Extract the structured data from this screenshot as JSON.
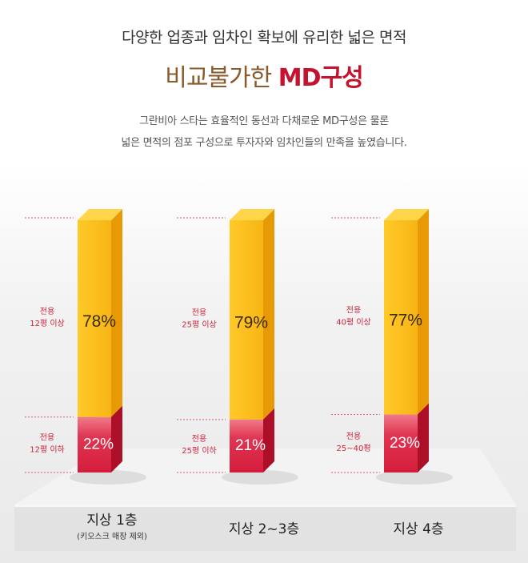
{
  "header": {
    "subtitle": "다양한 업종과 임차인 확보에 유리한 넓은 면적",
    "title_plain": "비교불가한 ",
    "title_highlight": "MD구성",
    "description_line1": "그란비아 스타는 효율적인 동선과 다채로운 MD구성은 물론",
    "description_line2": "넓은 면적의 점포 구성으로 투자자와 임차인들의 만족을 높였습니다."
  },
  "chart_data": {
    "type": "bar",
    "stacked": true,
    "categories": [
      "지상 1층",
      "지상 2~3층",
      "지상 4층"
    ],
    "category_notes": [
      "(키오스크 매장 제외)",
      "",
      ""
    ],
    "series": [
      {
        "values": [
          22,
          21,
          23
        ],
        "labels": [
          "22%",
          "21%",
          "23%"
        ],
        "side_labels": [
          [
            "전용",
            "12평 이하"
          ],
          [
            "전용",
            "25평 이하"
          ],
          [
            "전용",
            "25~40평"
          ]
        ],
        "color": "#d41d3c"
      },
      {
        "values": [
          78,
          79,
          77
        ],
        "labels": [
          "78%",
          "79%",
          "77%"
        ],
        "side_labels": [
          [
            "전용",
            "12평 이상"
          ],
          [
            "전용",
            "25평 이상"
          ],
          [
            "전용",
            "40평 이상"
          ]
        ],
        "color": "#f7b515"
      }
    ],
    "ylim": [
      0,
      100
    ],
    "unit": "%"
  },
  "colors": {
    "gold_front": "#f7b515",
    "gold_side": "#e79a06",
    "gold_top": "#ffd54a",
    "red_front": "#d41d3c",
    "red_side": "#ac0f27",
    "label_red": "#d0243a",
    "title_brown": "#8a5a2b",
    "title_red": "#c4122f"
  }
}
